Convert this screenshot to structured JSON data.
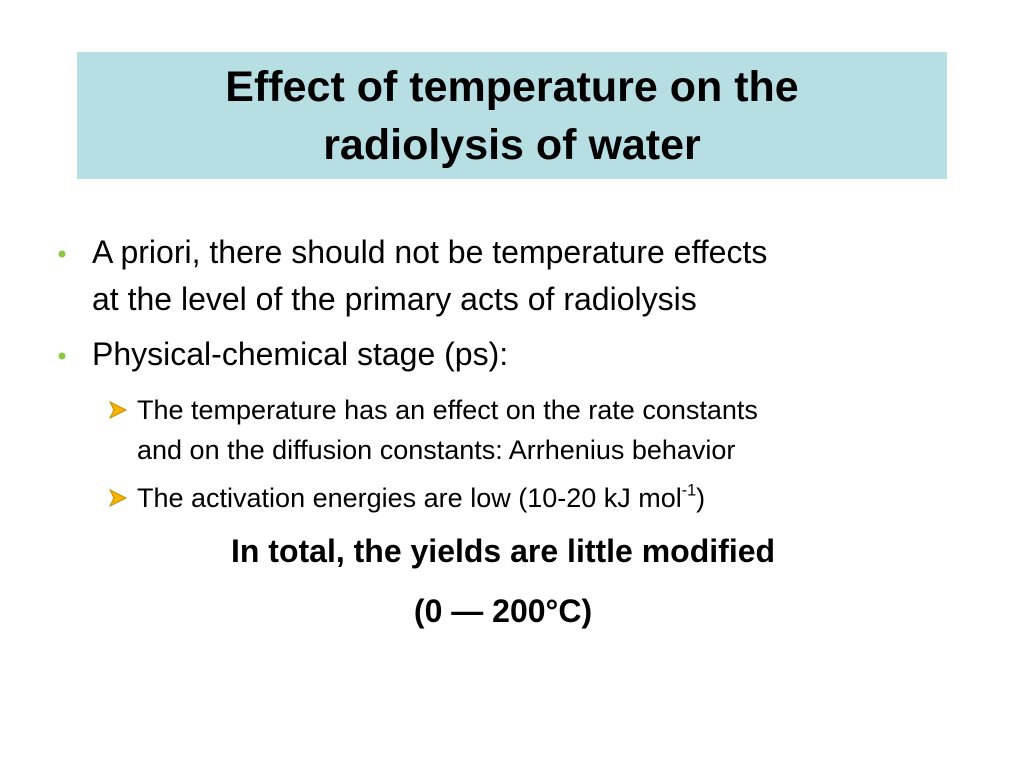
{
  "title": {
    "lines": [
      "Effect of temperature on the",
      "radiolysis of water"
    ]
  },
  "bullets": [
    {
      "lines": [
        "A priori, there should not be temperature effects",
        "at the level of the primary acts of radiolysis"
      ]
    },
    {
      "lines": [
        "Physical-chemical stage (ps):"
      ]
    }
  ],
  "sub_bullets": [
    {
      "lines": [
        "The temperature has an effect on the rate constants",
        "and on the diffusion constants: Arrhenius behavior"
      ]
    },
    {
      "text": "The activation energies are low (10-20 kJ mol",
      "superscript": "-1",
      "after": ")"
    }
  ],
  "conclusion": [
    "In total,  the yields are little modified",
    "(0 — 200°C)"
  ]
}
